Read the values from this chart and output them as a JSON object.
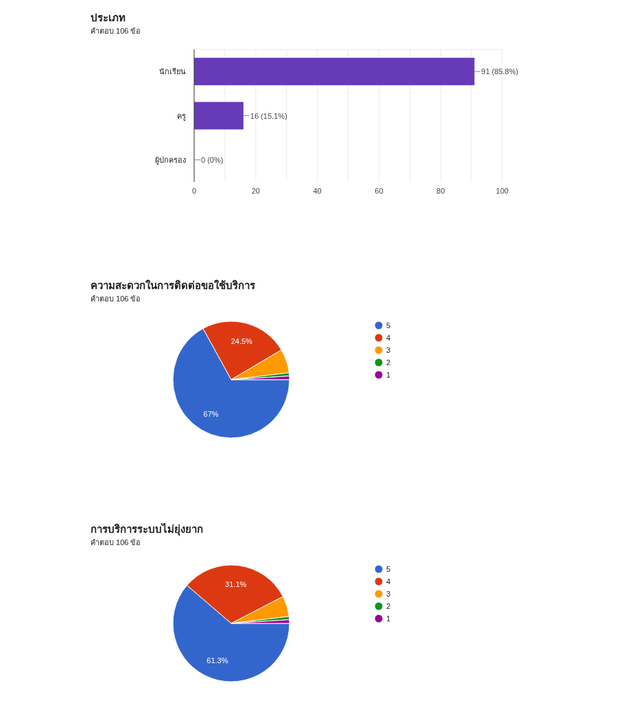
{
  "chart_data": [
    {
      "type": "bar",
      "orientation": "horizontal",
      "title": "ประเภท",
      "subtitle": "คำตอบ 106 ข้อ",
      "categories": [
        "นักเรียน",
        "ครู",
        "ผู้ปกครอง"
      ],
      "values": [
        91,
        16,
        0
      ],
      "color": "#673ab7",
      "value_labels": [
        "91 (85.8%)",
        "16 (15.1%)",
        "0 (0%)"
      ],
      "xlim": [
        0,
        100
      ],
      "xticks": [
        0,
        {
          "value": 10,
          "label": null
        },
        20,
        {
          "value": 30,
          "label": null
        },
        40,
        {
          "value": 50,
          "label": null
        },
        60,
        {
          "value": 70,
          "label": null
        },
        80,
        {
          "value": 90,
          "label": null
        },
        100
      ],
      "grid": "x"
    },
    {
      "type": "pie",
      "title": "ความสะดวกในการติดต่อขอใช้บริการ",
      "subtitle": "คำตอบ 106 ข้อ",
      "categories": [
        "5",
        "4",
        "3",
        "2",
        "1"
      ],
      "values": [
        67,
        24.5,
        6.6,
        0.9,
        1.0
      ],
      "colors": [
        "#3366cc",
        "#dc3912",
        "#ff9900",
        "#109618",
        "#990099"
      ],
      "value_labels": [
        "67%",
        "24.5%",
        null,
        null,
        null
      ],
      "legend": "right"
    },
    {
      "type": "pie",
      "title": "การบริการระบบไม่ยุ่งยาก",
      "subtitle": "คำตอบ 106 ข้อ",
      "categories": [
        "5",
        "4",
        "3",
        "2",
        "1"
      ],
      "values": [
        61.3,
        31.1,
        5.7,
        0.9,
        1.0
      ],
      "colors": [
        "#3366cc",
        "#dc3912",
        "#ff9900",
        "#109618",
        "#990099"
      ],
      "value_labels": [
        "61.3%",
        "31.1%",
        null,
        null,
        null
      ],
      "legend": "right"
    }
  ]
}
